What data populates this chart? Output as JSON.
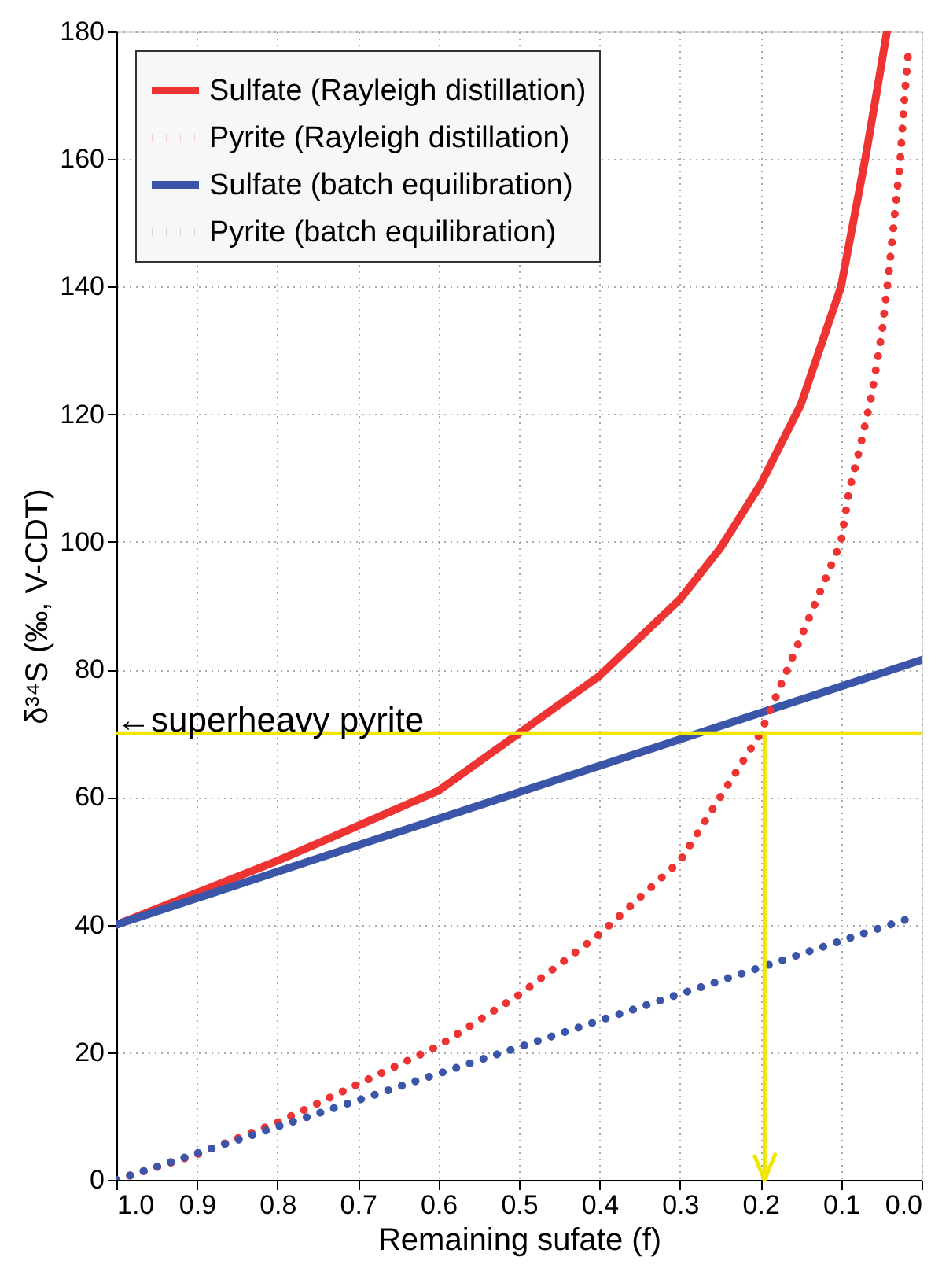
{
  "chart_data": {
    "type": "line",
    "xlabel": "Remaining sufate (f)",
    "ylabel": "δ³⁴S (‰, V-CDT)",
    "xlim": [
      1.0,
      0.0
    ],
    "ylim": [
      0,
      180
    ],
    "xticks": [
      {
        "value": 1,
        "label": "1.0"
      },
      {
        "value": 0.9,
        "label": "0.9"
      },
      {
        "value": 0.8,
        "label": "0.8"
      },
      {
        "value": 0.7,
        "label": "0.7"
      },
      {
        "value": 0.6,
        "label": "0.6"
      },
      {
        "value": 0.5,
        "label": "0.5"
      },
      {
        "value": 0.4,
        "label": "0.4"
      },
      {
        "value": 0.3,
        "label": "0.3"
      },
      {
        "value": 0.2,
        "label": "0.2"
      },
      {
        "value": 0.1,
        "label": "0.1"
      },
      {
        "value": 0,
        "label": "0.0"
      }
    ],
    "yticks": [
      0,
      20,
      40,
      60,
      80,
      100,
      120,
      140,
      160,
      180
    ],
    "grid": true,
    "legend": "top left",
    "series": [
      {
        "name": "Sulfate (Rayleigh distillation)",
        "color": "#ee3333",
        "line_style": "solid",
        "x": [
          1.0,
          0.9,
          0.8,
          0.7,
          0.6,
          0.5,
          0.4,
          0.3,
          0.25,
          0.2,
          0.15,
          0.1,
          0.07,
          0.055,
          0.043
        ],
        "values": [
          40,
          45,
          50,
          55.5,
          61,
          70,
          79,
          91,
          99,
          109,
          121.5,
          140,
          160,
          171,
          180
        ]
      },
      {
        "name": "Pyrite (Rayleigh distillation)",
        "color": "#ee3333",
        "line_style": "dotted",
        "x": [
          1.0,
          0.9,
          0.8,
          0.7,
          0.6,
          0.5,
          0.4,
          0.3,
          0.25,
          0.2,
          0.15,
          0.1,
          0.09,
          0.076,
          0.062,
          0.049,
          0.04,
          0.032,
          0.027,
          0.021,
          0.017
        ],
        "values": [
          0,
          4,
          9,
          15,
          21,
          29,
          38.5,
          50,
          60,
          70,
          85,
          100,
          108,
          115,
          123,
          133,
          143,
          153,
          159,
          170,
          176
        ]
      },
      {
        "name": "Sulfate (batch equilibration)",
        "color": "#3b55a8",
        "line_style": "solid",
        "x": [
          1.0,
          0.0
        ],
        "values": [
          40,
          81.5
        ]
      },
      {
        "name": "Pyrite (batch equilibration)",
        "color": "#3b55a8",
        "line_style": "dotted",
        "x": [
          1.0,
          0.015
        ],
        "values": [
          0,
          41
        ]
      }
    ],
    "ref_lines": [
      {
        "axis": "y",
        "value": 70,
        "color": "#f2e600"
      },
      {
        "axis": "x",
        "value": 0.195,
        "color": "#f2e600"
      }
    ],
    "annotations": [
      {
        "text": "←superheavy pyrite",
        "x": 1.0,
        "y": 70
      }
    ]
  }
}
